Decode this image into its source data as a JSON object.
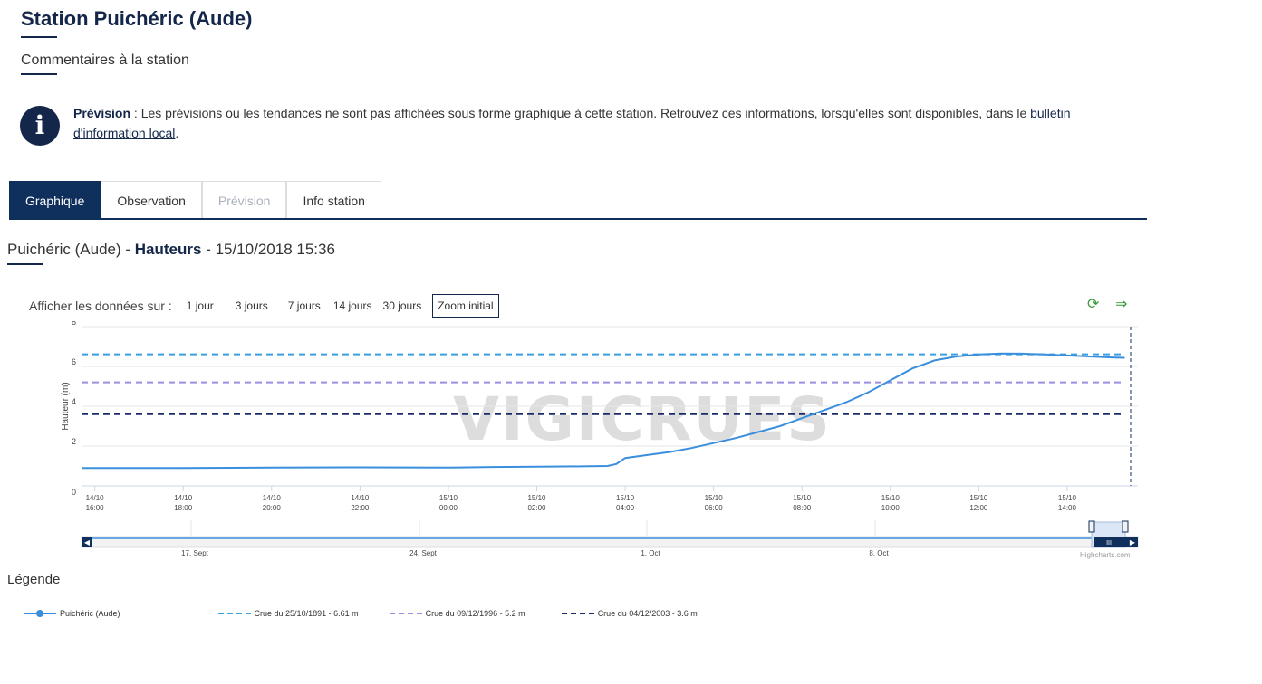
{
  "header": {
    "title": "Station Puichéric (Aude)",
    "subtitle": "Commentaires à la station"
  },
  "info": {
    "label": "Prévision",
    "text": " : Les prévisions ou les tendances ne sont pas affichées sous forme graphique à cette station. Retrouvez ces informations, lorsqu'elles sont disponibles, dans le ",
    "link": "bulletin d'information local",
    "end": "."
  },
  "tabs": [
    {
      "label": "Graphique",
      "state": "active"
    },
    {
      "label": "Observation",
      "state": "normal"
    },
    {
      "label": "Prévision",
      "state": "disabled"
    },
    {
      "label": "Info station",
      "state": "normal"
    }
  ],
  "chart_header": {
    "station": "Puichéric (Aude)",
    "sep1": " - ",
    "measure": "Hauteurs",
    "sep2": " - ",
    "datetime": "15/10/2018 15:36"
  },
  "range_selector": {
    "label": "Afficher les données sur :",
    "buttons": [
      "1 jour",
      "3 jours",
      "7 jours",
      "14 jours",
      "30 jours"
    ],
    "zoom": "Zoom initial"
  },
  "icons": {
    "refresh": "refresh-icon",
    "export": "arrow-right-icon"
  },
  "watermark": "VIGICRUES",
  "credits": "Highcharts.com",
  "legend_title": "Légende",
  "colors": {
    "series": "#3a8fdd",
    "crue1891": "#3aa0e0",
    "crue1996": "#9a8fe0",
    "crue2003": "#1a2a6a",
    "navy": "#0f2f5d"
  },
  "chart_data": {
    "type": "line",
    "ylabel": "Hauteur (m)",
    "ylim": [
      0,
      8
    ],
    "y_ticks": [
      0,
      2,
      4,
      6,
      8
    ],
    "x_unit": "hours since 14/10 16:00",
    "xlim": [
      -0.3,
      23.6
    ],
    "x_ticks": [
      {
        "x": 0,
        "label": [
          "14/10",
          "16:00"
        ]
      },
      {
        "x": 2,
        "label": [
          "14/10",
          "18:00"
        ]
      },
      {
        "x": 4,
        "label": [
          "14/10",
          "20:00"
        ]
      },
      {
        "x": 6,
        "label": [
          "14/10",
          "22:00"
        ]
      },
      {
        "x": 8,
        "label": [
          "15/10",
          "00:00"
        ]
      },
      {
        "x": 10,
        "label": [
          "15/10",
          "02:00"
        ]
      },
      {
        "x": 12,
        "label": [
          "15/10",
          "04:00"
        ]
      },
      {
        "x": 14,
        "label": [
          "15/10",
          "06:00"
        ]
      },
      {
        "x": 16,
        "label": [
          "15/10",
          "08:00"
        ]
      },
      {
        "x": 18,
        "label": [
          "15/10",
          "10:00"
        ]
      },
      {
        "x": 20,
        "label": [
          "15/10",
          "12:00"
        ]
      },
      {
        "x": 22,
        "label": [
          "15/10",
          "14:00"
        ]
      }
    ],
    "series": [
      {
        "name": "Puichéric (Aude)",
        "points": [
          [
            -0.3,
            0.9
          ],
          [
            2,
            0.9
          ],
          [
            4,
            0.92
          ],
          [
            6,
            0.93
          ],
          [
            8,
            0.92
          ],
          [
            9,
            0.95
          ],
          [
            10,
            0.97
          ],
          [
            11,
            0.98
          ],
          [
            11.6,
            1.0
          ],
          [
            11.8,
            1.1
          ],
          [
            12,
            1.4
          ],
          [
            12.5,
            1.55
          ],
          [
            13,
            1.7
          ],
          [
            13.5,
            1.9
          ],
          [
            14,
            2.15
          ],
          [
            14.5,
            2.4
          ],
          [
            15,
            2.7
          ],
          [
            15.5,
            3.0
          ],
          [
            16,
            3.4
          ],
          [
            16.5,
            3.8
          ],
          [
            17,
            4.2
          ],
          [
            17.5,
            4.7
          ],
          [
            18,
            5.3
          ],
          [
            18.5,
            5.9
          ],
          [
            19,
            6.3
          ],
          [
            19.5,
            6.5
          ],
          [
            20,
            6.6
          ],
          [
            20.5,
            6.65
          ],
          [
            21,
            6.64
          ],
          [
            21.5,
            6.6
          ],
          [
            22,
            6.55
          ],
          [
            22.5,
            6.5
          ],
          [
            23,
            6.45
          ],
          [
            23.3,
            6.43
          ]
        ]
      }
    ],
    "thresholds": [
      {
        "name": "Crue du 25/10/1891 - 6.61 m",
        "value": 6.61,
        "color": "#3aa0e0"
      },
      {
        "name": "Crue du 09/12/1996 - 5.2 m",
        "value": 5.2,
        "color": "#9a8fe0"
      },
      {
        "name": "Crue du 04/12/2003 - 3.6 m",
        "value": 3.6,
        "color": "#1a2a6a"
      }
    ],
    "navigator": {
      "labels": [
        "17. Sept",
        "24. Sept",
        "1. Oct",
        "8. Oct"
      ]
    }
  }
}
